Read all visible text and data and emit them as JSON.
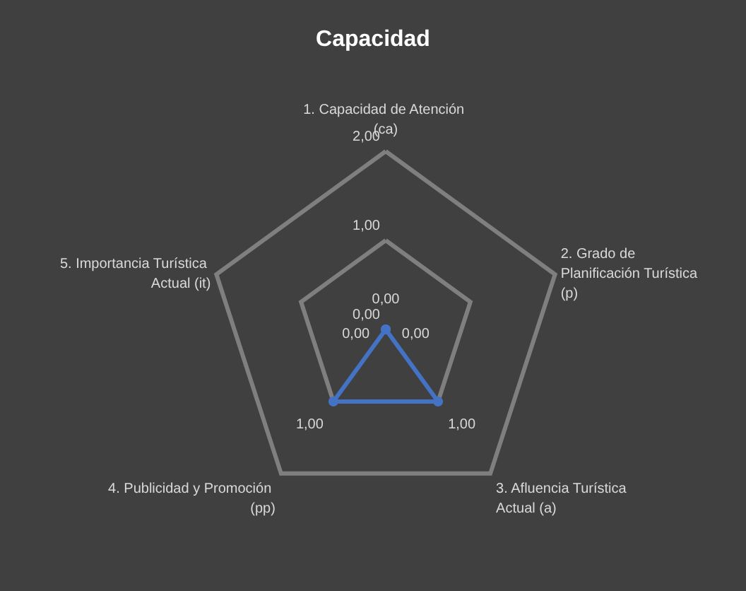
{
  "chart_data": {
    "type": "radar",
    "title": "Capacidad",
    "categories": [
      "1. Capacidad de Atención (ca)",
      "2. Grado de Planificación Turística (p)",
      "3. Afluencia Turística Actual (a)",
      "4. Publicidad y Promoción (pp)",
      "5. Importancia Turística Actual (it)"
    ],
    "series": [
      {
        "color": "#4472c4",
        "values": [
          0,
          0,
          1,
          1,
          0
        ],
        "value_labels": [
          "0,00",
          "0,00",
          "1,00",
          "1,00",
          "0,00"
        ]
      }
    ],
    "ylim": [
      0,
      2
    ],
    "yticks": [
      {
        "value": 0,
        "label": "0,00"
      },
      {
        "value": 1,
        "label": "1,00"
      },
      {
        "value": 2,
        "label": "2,00"
      }
    ],
    "marker": "circle"
  }
}
